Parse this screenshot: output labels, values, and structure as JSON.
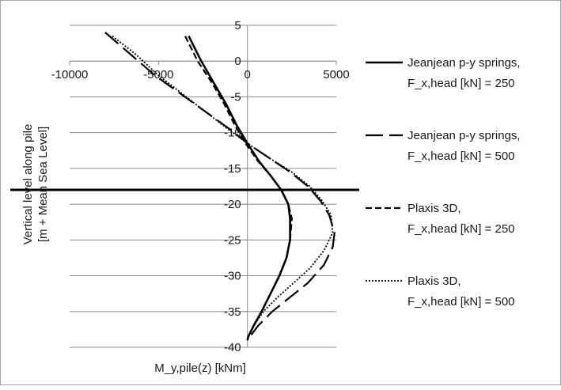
{
  "chart_data": {
    "type": "line",
    "xlabel": "M_y,pile(z) [kNm]",
    "ylabel": [
      "Vertical level along pile",
      "[m + Mean Sea Level]"
    ],
    "xlim": [
      -10000,
      5000
    ],
    "ylim": [
      -40,
      5
    ],
    "x_ticks": [
      "-10000",
      "-5000",
      "0",
      "5000"
    ],
    "y_ticks": [
      "5",
      "0",
      "-5",
      "-10",
      "-15",
      "-20",
      "-25",
      "-30",
      "-35",
      "-40"
    ],
    "x_tick_values": [
      -10000,
      -5000,
      0,
      5000
    ],
    "y_tick_values": [
      5,
      0,
      -5,
      -10,
      -15,
      -20,
      -25,
      -30,
      -35,
      -40
    ],
    "grid": "horizontal",
    "legend_position": "right",
    "reference_line": {
      "y": -18
    },
    "series": [
      {
        "name": "Jeanjean p-y springs, F_x,head [kN] = 250",
        "style": "solid",
        "x": [
          -3300,
          -2600,
          -1900,
          -1200,
          -600,
          0,
          650,
          1300,
          1900,
          2300,
          2400,
          2400,
          2200,
          1800,
          1300,
          800,
          350,
          50,
          0
        ],
        "y": [
          3.5,
          0,
          -3,
          -6,
          -9,
          -11.5,
          -14,
          -16,
          -18,
          -20,
          -22,
          -25,
          -27.5,
          -30,
          -32.5,
          -35,
          -37,
          -38.5,
          -39
        ]
      },
      {
        "name": "Jeanjean p-y springs, F_x,head [kN] = 500",
        "style": "longdash",
        "x": [
          -8000,
          -6600,
          -5200,
          -3800,
          -2400,
          -1000,
          0,
          1200,
          2400,
          3400,
          4100,
          4600,
          4900,
          4800,
          4300,
          3400,
          2400,
          1400,
          600,
          150,
          0
        ],
        "y": [
          4,
          1,
          -2,
          -4.5,
          -7,
          -9.5,
          -11.5,
          -13.5,
          -15.5,
          -17.5,
          -19.5,
          -21.5,
          -24,
          -26,
          -28.5,
          -31,
          -33,
          -35,
          -37,
          -38.5,
          -39
        ]
      },
      {
        "name": "Plaxis 3D, F_x,head [kN] = 250",
        "style": "dash",
        "x": [
          -3500,
          -2800,
          -2000,
          -1300,
          -700,
          -100,
          600,
          1300,
          1900,
          2300,
          2500,
          2400,
          2200,
          1800,
          1300,
          800,
          350,
          50,
          0
        ],
        "y": [
          3.5,
          0,
          -3,
          -6,
          -9,
          -11.5,
          -14,
          -16,
          -18,
          -20,
          -22,
          -25,
          -27.5,
          -30,
          -32.5,
          -35,
          -37,
          -38.5,
          -39
        ]
      },
      {
        "name": "Plaxis 3D, F_x,head [kN] = 500",
        "style": "dotted",
        "x": [
          -7600,
          -6300,
          -5000,
          -3700,
          -2400,
          -1100,
          0,
          1200,
          2500,
          3500,
          4200,
          4700,
          4800,
          4300,
          3500,
          2600,
          1700,
          900,
          350,
          50,
          0
        ],
        "y": [
          3.5,
          1,
          -2,
          -4.5,
          -7,
          -9.5,
          -11.5,
          -13.5,
          -15.5,
          -17.5,
          -19.5,
          -21.5,
          -24,
          -26.5,
          -29,
          -31,
          -33,
          -35,
          -37,
          -38.5,
          -39
        ]
      }
    ],
    "legend_lines": [
      [
        "Jeanjean p-y springs,",
        "F_x,head [kN] = 250"
      ],
      [
        "Jeanjean p-y springs,",
        "F_x,head [kN] = 500"
      ],
      [
        "Plaxis 3D,",
        "F_x,head [kN] = 250"
      ],
      [
        "Plaxis 3D,",
        "F_x,head [kN] = 500"
      ]
    ]
  }
}
